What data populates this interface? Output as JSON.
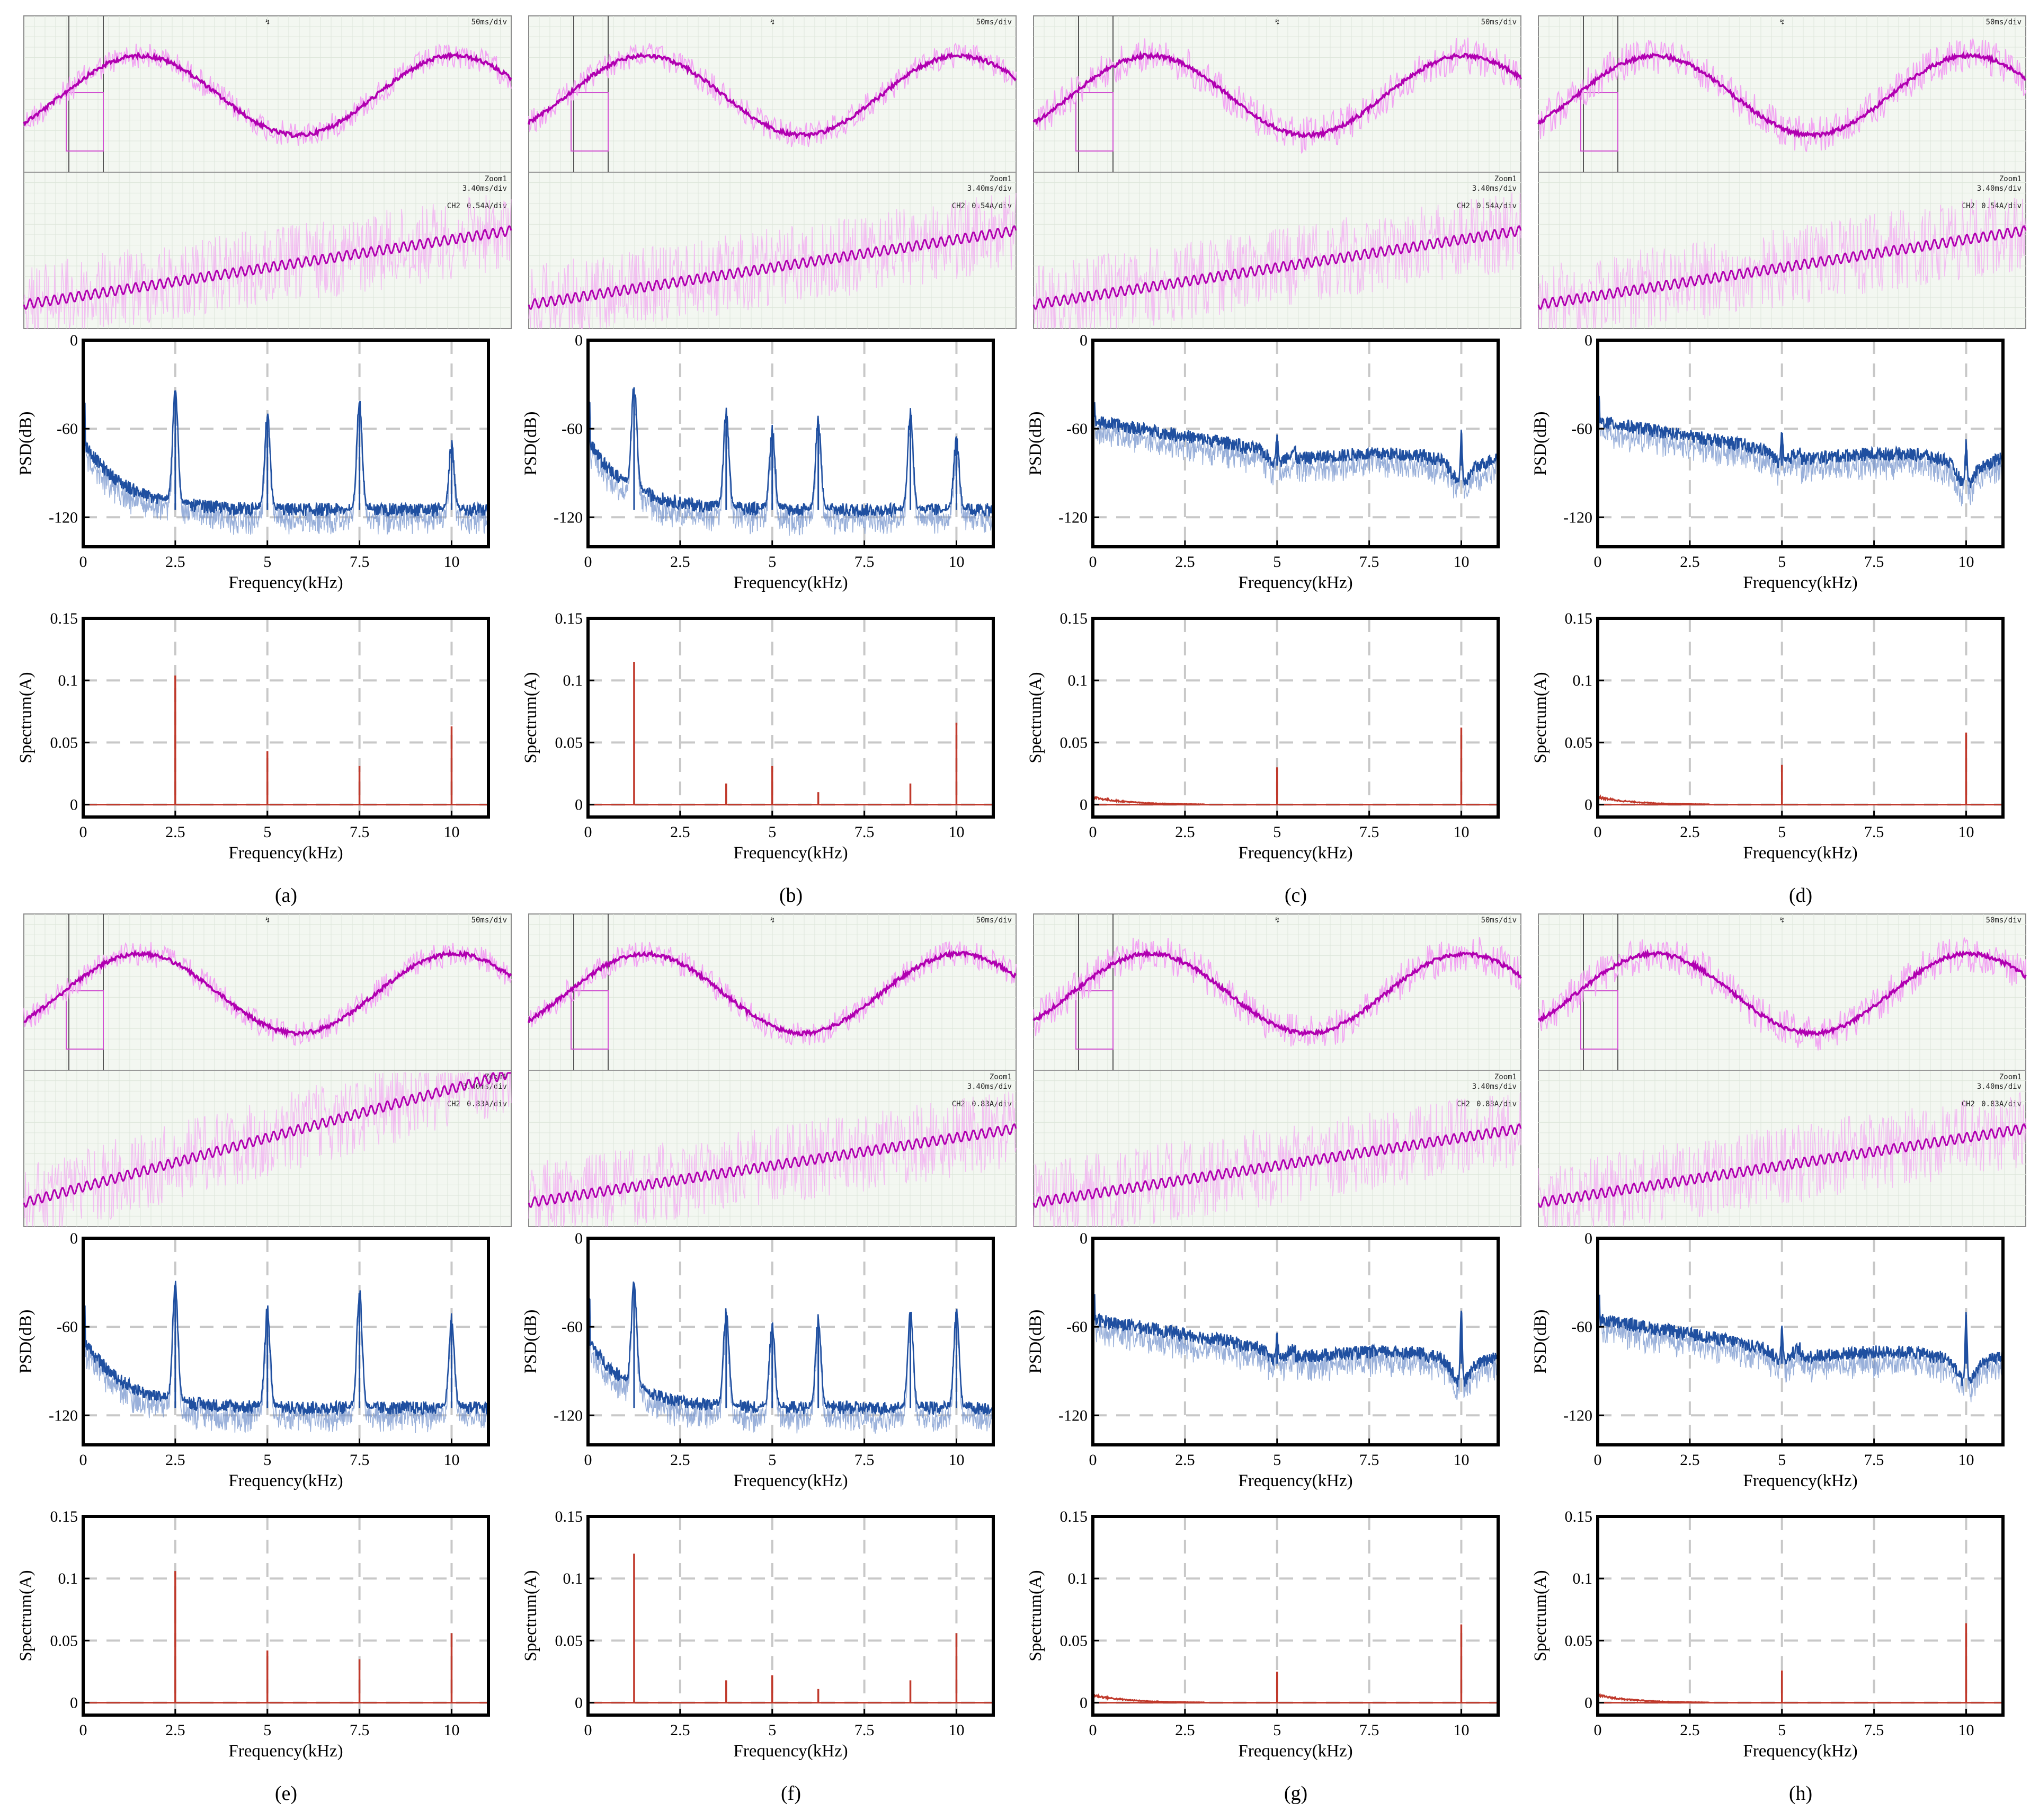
{
  "figure_title": "",
  "colors": {
    "psd_series": "#1f4fa0",
    "spectrum_series": "#c0392b",
    "scope_trace_dark": "#b000b0",
    "scope_trace_light": "#f2a6f2",
    "grid": "#c8c8c8"
  },
  "scope": {
    "timebase_label": "50ms/div",
    "zoom_label": "Zoom1",
    "zoom_timebase": "3.40ms/div",
    "channel_tag": "CH2",
    "trigger_mark": "↯"
  },
  "chart_data": [
    {
      "panel": "(a)",
      "scale": "0.54A/div",
      "pattern": "harmonic",
      "type": "line",
      "psd": {
        "xlabel": "Frequency(kHz)",
        "ylabel": "PSD(dB)",
        "xlim": [
          0,
          11
        ],
        "ylim": [
          -140,
          0
        ],
        "xticks": [
          0,
          2.5,
          5,
          7.5,
          10
        ],
        "yticks": [
          0,
          -60,
          -120
        ],
        "peaks": [
          {
            "x": 2.5,
            "y": -35
          },
          {
            "x": 5,
            "y": -52
          },
          {
            "x": 7.5,
            "y": -42
          },
          {
            "x": 10,
            "y": -72
          }
        ]
      },
      "spectrum": {
        "xlabel": "Frequency(kHz)",
        "ylabel": "Spectrum(A)",
        "xlim": [
          0,
          11
        ],
        "ylim": [
          -0.01,
          0.15
        ],
        "xticks": [
          0,
          2.5,
          5,
          7.5,
          10
        ],
        "yticks": [
          0,
          0.05,
          0.1,
          0.15
        ],
        "lines": [
          {
            "x": 2.5,
            "y": 0.104
          },
          {
            "x": 5,
            "y": 0.043
          },
          {
            "x": 7.5,
            "y": 0.031
          },
          {
            "x": 10,
            "y": 0.063
          }
        ]
      }
    },
    {
      "panel": "(b)",
      "scale": "0.54A/div",
      "pattern": "harmonic",
      "type": "line",
      "psd": {
        "xlabel": "Frequency(kHz)",
        "ylabel": "PSD(dB)",
        "xlim": [
          0,
          11
        ],
        "ylim": [
          -140,
          0
        ],
        "xticks": [
          0,
          2.5,
          5,
          7.5,
          10
        ],
        "yticks": [
          0,
          -60,
          -120
        ],
        "peaks": [
          {
            "x": 1.25,
            "y": -32
          },
          {
            "x": 3.75,
            "y": -50
          },
          {
            "x": 5,
            "y": -60
          },
          {
            "x": 6.25,
            "y": -55
          },
          {
            "x": 8.75,
            "y": -50
          },
          {
            "x": 10,
            "y": -68
          }
        ]
      },
      "spectrum": {
        "xlabel": "Frequency(kHz)",
        "ylabel": "Spectrum(A)",
        "xlim": [
          0,
          11
        ],
        "ylim": [
          -0.01,
          0.15
        ],
        "xticks": [
          0,
          2.5,
          5,
          7.5,
          10
        ],
        "yticks": [
          0,
          0.05,
          0.1,
          0.15
        ],
        "lines": [
          {
            "x": 1.25,
            "y": 0.115
          },
          {
            "x": 3.75,
            "y": 0.017
          },
          {
            "x": 5,
            "y": 0.031
          },
          {
            "x": 6.25,
            "y": 0.01
          },
          {
            "x": 8.75,
            "y": 0.017
          },
          {
            "x": 10,
            "y": 0.066
          }
        ]
      }
    },
    {
      "panel": "(c)",
      "scale": "0.54A/div",
      "pattern": "spread",
      "type": "line",
      "psd": {
        "xlabel": "Frequency(kHz)",
        "ylabel": "PSD(dB)",
        "xlim": [
          0,
          11
        ],
        "ylim": [
          -140,
          0
        ],
        "xticks": [
          0,
          2.5,
          5,
          7.5,
          10
        ],
        "yticks": [
          0,
          -60,
          -120
        ],
        "peaks": [
          {
            "x": 5,
            "y": -64
          },
          {
            "x": 10,
            "y": -65
          }
        ]
      },
      "spectrum": {
        "xlabel": "Frequency(kHz)",
        "ylabel": "Spectrum(A)",
        "xlim": [
          0,
          11
        ],
        "ylim": [
          -0.01,
          0.15
        ],
        "xticks": [
          0,
          2.5,
          5,
          7.5,
          10
        ],
        "yticks": [
          0,
          0.05,
          0.1,
          0.15
        ],
        "lines": [
          {
            "x": 5,
            "y": 0.03
          },
          {
            "x": 10,
            "y": 0.062
          }
        ]
      }
    },
    {
      "panel": "(d)",
      "scale": "0.54A/div",
      "pattern": "spread",
      "type": "line",
      "psd": {
        "xlabel": "Frequency(kHz)",
        "ylabel": "PSD(dB)",
        "xlim": [
          0,
          11
        ],
        "ylim": [
          -140,
          0
        ],
        "xticks": [
          0,
          2.5,
          5,
          7.5,
          10
        ],
        "yticks": [
          0,
          -60,
          -120
        ],
        "peaks": [
          {
            "x": 5,
            "y": -64
          },
          {
            "x": 10,
            "y": -70
          }
        ]
      },
      "spectrum": {
        "xlabel": "Frequency(kHz)",
        "ylabel": "Spectrum(A)",
        "xlim": [
          0,
          11
        ],
        "ylim": [
          -0.01,
          0.15
        ],
        "xticks": [
          0,
          2.5,
          5,
          7.5,
          10
        ],
        "yticks": [
          0,
          0.05,
          0.1,
          0.15
        ],
        "lines": [
          {
            "x": 5,
            "y": 0.032
          },
          {
            "x": 10,
            "y": 0.058
          }
        ]
      }
    },
    {
      "panel": "(e)",
      "scale": "0.83A/div",
      "pattern": "harmonic",
      "type": "line",
      "psd": {
        "xlabel": "Frequency(kHz)",
        "ylabel": "PSD(dB)",
        "xlim": [
          0,
          11
        ],
        "ylim": [
          -140,
          0
        ],
        "xticks": [
          0,
          2.5,
          5,
          7.5,
          10
        ],
        "yticks": [
          0,
          -60,
          -120
        ],
        "peaks": [
          {
            "x": 2.5,
            "y": -33
          },
          {
            "x": 5,
            "y": -48
          },
          {
            "x": 7.5,
            "y": -37
          },
          {
            "x": 10,
            "y": -55
          }
        ]
      },
      "spectrum": {
        "xlabel": "Frequency(kHz)",
        "ylabel": "Spectrum(A)",
        "xlim": [
          0,
          11
        ],
        "ylim": [
          -0.01,
          0.15
        ],
        "xticks": [
          0,
          2.5,
          5,
          7.5,
          10
        ],
        "yticks": [
          0,
          0.05,
          0.1,
          0.15
        ],
        "lines": [
          {
            "x": 2.5,
            "y": 0.106
          },
          {
            "x": 5,
            "y": 0.042
          },
          {
            "x": 7.5,
            "y": 0.035
          },
          {
            "x": 10,
            "y": 0.056
          }
        ]
      }
    },
    {
      "panel": "(f)",
      "scale": "0.83A/div",
      "pattern": "harmonic",
      "type": "line",
      "psd": {
        "xlabel": "Frequency(kHz)",
        "ylabel": "PSD(dB)",
        "xlim": [
          0,
          11
        ],
        "ylim": [
          -140,
          0
        ],
        "xticks": [
          0,
          2.5,
          5,
          7.5,
          10
        ],
        "yticks": [
          0,
          -60,
          -120
        ],
        "peaks": [
          {
            "x": 1.25,
            "y": -32
          },
          {
            "x": 3.75,
            "y": -50
          },
          {
            "x": 5,
            "y": -58
          },
          {
            "x": 6.25,
            "y": -55
          },
          {
            "x": 8.75,
            "y": -50
          },
          {
            "x": 10,
            "y": -52
          }
        ]
      },
      "spectrum": {
        "xlabel": "Frequency(kHz)",
        "ylabel": "Spectrum(A)",
        "xlim": [
          0,
          11
        ],
        "ylim": [
          -0.01,
          0.15
        ],
        "xticks": [
          0,
          2.5,
          5,
          7.5,
          10
        ],
        "yticks": [
          0,
          0.05,
          0.1,
          0.15
        ],
        "lines": [
          {
            "x": 1.25,
            "y": 0.12
          },
          {
            "x": 3.75,
            "y": 0.018
          },
          {
            "x": 5,
            "y": 0.022
          },
          {
            "x": 6.25,
            "y": 0.011
          },
          {
            "x": 8.75,
            "y": 0.018
          },
          {
            "x": 10,
            "y": 0.056
          }
        ]
      }
    },
    {
      "panel": "(g)",
      "scale": "0.83A/div",
      "pattern": "spread",
      "type": "line",
      "psd": {
        "xlabel": "Frequency(kHz)",
        "ylabel": "PSD(dB)",
        "xlim": [
          0,
          11
        ],
        "ylim": [
          -140,
          0
        ],
        "xticks": [
          0,
          2.5,
          5,
          7.5,
          10
        ],
        "yticks": [
          0,
          -60,
          -120
        ],
        "peaks": [
          {
            "x": 5,
            "y": -64
          },
          {
            "x": 10,
            "y": -52
          }
        ]
      },
      "spectrum": {
        "xlabel": "Frequency(kHz)",
        "ylabel": "Spectrum(A)",
        "xlim": [
          0,
          11
        ],
        "ylim": [
          -0.01,
          0.15
        ],
        "xticks": [
          0,
          2.5,
          5,
          7.5,
          10
        ],
        "yticks": [
          0,
          0.05,
          0.1,
          0.15
        ],
        "lines": [
          {
            "x": 5,
            "y": 0.025
          },
          {
            "x": 10,
            "y": 0.063
          }
        ]
      }
    },
    {
      "panel": "(h)",
      "scale": "0.83A/div",
      "pattern": "spread",
      "type": "line",
      "psd": {
        "xlabel": "Frequency(kHz)",
        "ylabel": "PSD(dB)",
        "xlim": [
          0,
          11
        ],
        "ylim": [
          -140,
          0
        ],
        "xticks": [
          0,
          2.5,
          5,
          7.5,
          10
        ],
        "yticks": [
          0,
          -60,
          -120
        ],
        "peaks": [
          {
            "x": 5,
            "y": -63
          },
          {
            "x": 10,
            "y": -52
          }
        ]
      },
      "spectrum": {
        "xlabel": "Frequency(kHz)",
        "ylabel": "Spectrum(A)",
        "xlim": [
          0,
          11
        ],
        "ylim": [
          -0.01,
          0.15
        ],
        "xticks": [
          0,
          2.5,
          5,
          7.5,
          10
        ],
        "yticks": [
          0,
          0.05,
          0.1,
          0.15
        ],
        "lines": [
          {
            "x": 5,
            "y": 0.026
          },
          {
            "x": 10,
            "y": 0.064
          }
        ]
      }
    }
  ]
}
